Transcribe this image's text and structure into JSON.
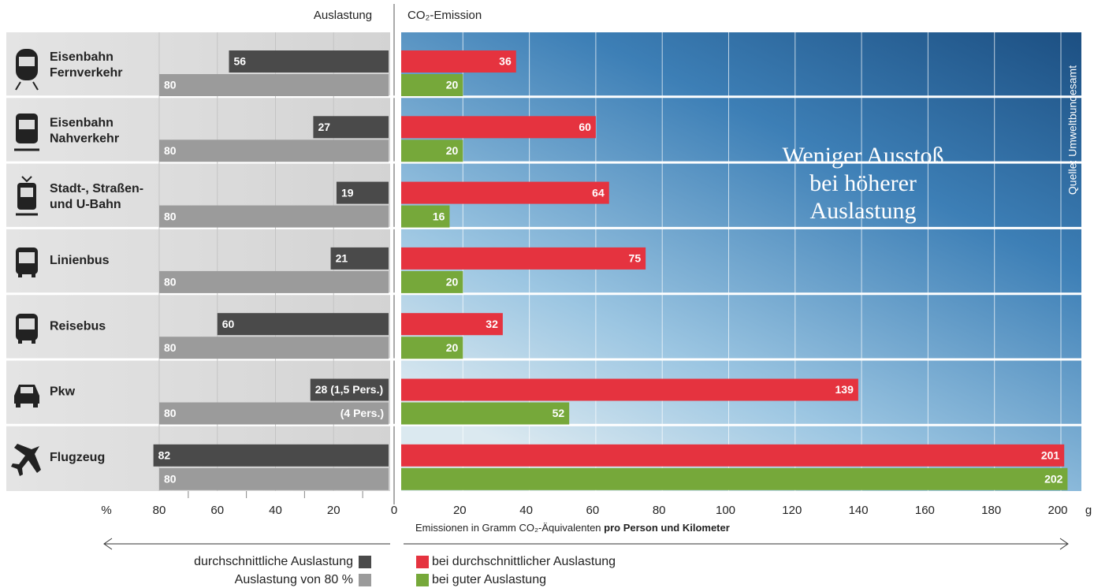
{
  "chart_data": [
    {
      "type": "bar",
      "orientation": "horizontal",
      "reversed": true,
      "title": "Auslastung",
      "x_unit": "%",
      "categories": [
        [
          "Eisenbahn",
          "Fernverkehr"
        ],
        [
          "Eisenbahn",
          "Nahverkehr"
        ],
        [
          "Stadt-, Straßen-",
          "und U-Bahn"
        ],
        [
          "Linienbus"
        ],
        [
          "Reisebus"
        ],
        [
          "Pkw"
        ],
        [
          "Flugzeug"
        ]
      ],
      "series": [
        {
          "name": "durchschnittliche Auslastung",
          "color": "#4a4a4a",
          "values": [
            56,
            27,
            19,
            21,
            60,
            28,
            82
          ],
          "value_labels": [
            "56",
            "27",
            "19",
            "21",
            "60",
            "28 (1,5 Pers.)",
            "82"
          ]
        },
        {
          "name": "Auslastung von 80 %",
          "color": "#9b9b9b",
          "values": [
            80,
            80,
            80,
            80,
            80,
            80,
            80
          ]
        }
      ],
      "annotations": [
        "(4 Pers.)"
      ],
      "xlim": [
        0,
        80
      ],
      "xticks": [
        20,
        40,
        60,
        80
      ],
      "minor_xticks": [
        10,
        30,
        50,
        70
      ]
    },
    {
      "type": "bar",
      "orientation": "horizontal",
      "title": "CO₂-Emission",
      "x_unit": "g",
      "xlabel": [
        "Emissionen in Gramm CO₂-Äquivalenten",
        "pro Person und Kilometer"
      ],
      "series": [
        {
          "name": "bei durchschnittlicher Auslastung",
          "color": "#e5333f",
          "values": [
            36,
            60,
            64,
            75,
            32,
            139,
            201
          ]
        },
        {
          "name": "bei guter Auslastung",
          "color": "#76a83a",
          "values": [
            20,
            20,
            16,
            20,
            20,
            52,
            202
          ]
        }
      ],
      "annotations": [
        "Weniger Ausstoß",
        "bei höherer",
        "Auslastung"
      ],
      "source": "Quelle: Umweltbundesamt",
      "xlim": [
        0,
        200
      ],
      "xticks": [
        0,
        20,
        40,
        60,
        80,
        100,
        120,
        140,
        160,
        180,
        200
      ],
      "grid": true
    }
  ]
}
